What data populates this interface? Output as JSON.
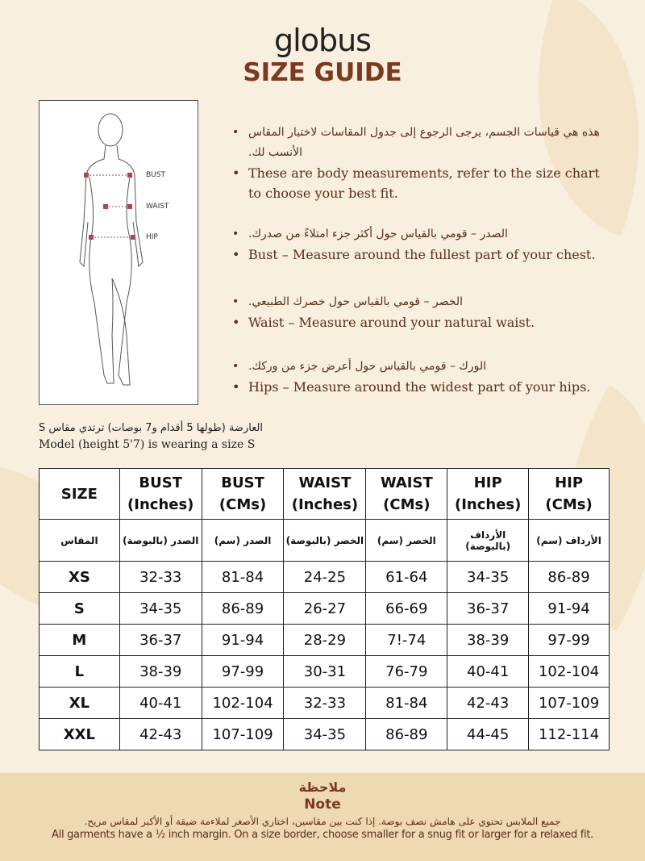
{
  "header": {
    "brand": "globus",
    "title": "SIZE GUIDE"
  },
  "figure": {
    "labels": [
      "BUST",
      "WAIST",
      "HIP"
    ],
    "marker_color": "#b5434a"
  },
  "instructions": [
    {
      "ar": "هذه هي قياسات الجسم، يرجى الرجوع إلى جدول المقاسات لاختيار المقاس الأنسب لك.",
      "en": "These are body measurements, refer to the size chart to choose your best fit."
    },
    {
      "ar": "الصدر – قومي بالقياس حول أكثر جزء امتلاءً من صدرك.",
      "en": "Bust – Measure around the fullest part of your chest."
    },
    {
      "ar": "الخصر – قومي بالقياس حول خصرك الطبيعي.",
      "en": "Waist – Measure around your natural waist."
    },
    {
      "ar": "الورك – قومي بالقياس حول أعرض جزء من وركك.",
      "en": "Hips – Measure around the widest part of your hips."
    }
  ],
  "model": {
    "ar": "العارضة (طولها 5 أقدام و7 بوصات) ترتدي مقاس S",
    "en": "Model (height 5'7) is wearing a size S"
  },
  "table": {
    "headers": [
      [
        "SIZE",
        ""
      ],
      [
        "BUST",
        "(Inches)"
      ],
      [
        "BUST",
        "(CMs)"
      ],
      [
        "WAIST",
        "(Inches)"
      ],
      [
        "WAIST",
        "(CMs)"
      ],
      [
        "HIP",
        "(Inches)"
      ],
      [
        "HIP",
        "(CMs)"
      ]
    ],
    "headers_ar": [
      "المقاس",
      "الصدر (بالبوصة)",
      "الصدر (سم)",
      "الخصر (بالبوصة)",
      "الخصر (سم)",
      "الأرداف (بالبوصة)",
      "الأرداف (سم)"
    ],
    "rows": [
      [
        "XS",
        "32-33",
        "81-84",
        "24-25",
        "61-64",
        "34-35",
        "86-89"
      ],
      [
        "S",
        "34-35",
        "86-89",
        "26-27",
        "66-69",
        "36-37",
        "91-94"
      ],
      [
        "M",
        "36-37",
        "91-94",
        "28-29",
        "7!-74",
        "38-39",
        "97-99"
      ],
      [
        "L",
        "38-39",
        "97-99",
        "30-31",
        "76-79",
        "40-41",
        "102-104"
      ],
      [
        "XL",
        "40-41",
        "102-104",
        "32-33",
        "81-84",
        "42-43",
        "107-109"
      ],
      [
        "XXL",
        "42-43",
        "107-109",
        "34-35",
        "86-89",
        "44-45",
        "112-114"
      ]
    ]
  },
  "note": {
    "title_ar": "ملاحظة",
    "title_en": "Note",
    "text_ar": "جميع الملابس تحتوي على هامش نصف بوصة. إذا كنت بين مقاسين، اختاري الأصغر لملاءمة ضيقة أو الأكبر لمقاس مريح.",
    "text_en": "All garments have a ½ inch margin. On a size border, choose smaller for a snug fit or larger for a relaxed fit."
  }
}
